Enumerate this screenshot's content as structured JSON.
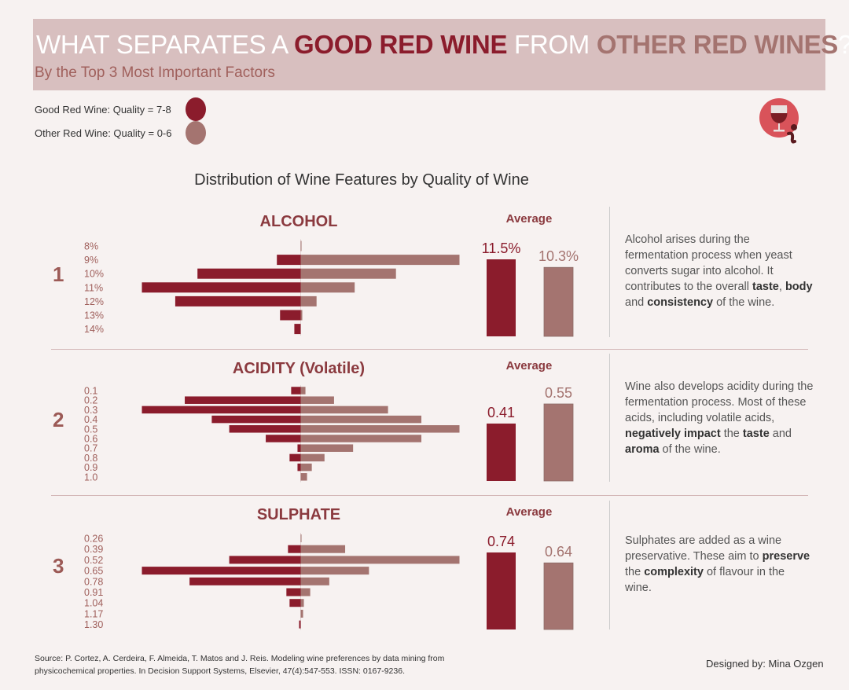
{
  "header": {
    "title_part1": "WHAT SEPARATES A ",
    "title_good": "GOOD RED WINE",
    "title_part2": " FROM ",
    "title_other": "OTHER RED WINES",
    "title_part3": "?",
    "subtitle": "By the Top 3 Most Important Factors"
  },
  "legend": {
    "good_label": "Good Red Wine: Quality = 7-8",
    "other_label": "Other Red Wine: Quality = 0-6"
  },
  "colors": {
    "good": "#8b1c2c",
    "other": "#a47470",
    "banner": "#d8bfbf",
    "background": "#f7f2f1"
  },
  "icon": "wine-glass-info-icon",
  "chart_heading": "Distribution of Wine Features by Quality of Wine",
  "average_label": "Average",
  "chart_data": [
    {
      "type": "bar",
      "orientation": "diverging-horizontal",
      "rank": "1",
      "title": "ALCOHOL",
      "categories": [
        "8%",
        "9%",
        "10%",
        "11%",
        "12%",
        "13%",
        "14%"
      ],
      "series": [
        {
          "name": "Good Red Wine: Quality = 7-8",
          "values": [
            0,
            0.15,
            0.65,
            1.0,
            0.79,
            0.13,
            0.04
          ]
        },
        {
          "name": "Other Red Wine: Quality = 0-6",
          "values": [
            0.005,
            1.0,
            0.6,
            0.34,
            0.1,
            0.01,
            0
          ]
        }
      ],
      "average": {
        "good": 11.5,
        "other": 10.3,
        "good_label": "11.5%",
        "other_label": "10.3%"
      }
    },
    {
      "type": "bar",
      "orientation": "diverging-horizontal",
      "rank": "2",
      "title": "ACIDITY (Volatile)",
      "categories": [
        "0.1",
        "0.2",
        "0.3",
        "0.4",
        "0.5",
        "0.6",
        "0.7",
        "0.8",
        "0.9",
        "1.0"
      ],
      "series": [
        {
          "name": "Good Red Wine: Quality = 7-8",
          "values": [
            0.06,
            0.73,
            1.0,
            0.56,
            0.45,
            0.22,
            0.02,
            0.07,
            0.02,
            0
          ]
        },
        {
          "name": "Other Red Wine: Quality = 0-6",
          "values": [
            0.03,
            0.21,
            0.55,
            0.76,
            1.0,
            0.76,
            0.33,
            0.15,
            0.07,
            0.04
          ]
        }
      ],
      "average": {
        "good": 0.41,
        "other": 0.55,
        "good_label": "0.41",
        "other_label": "0.55"
      }
    },
    {
      "type": "bar",
      "orientation": "diverging-horizontal",
      "rank": "3",
      "title": "SULPHATE",
      "categories": [
        "0.26",
        "0.39",
        "0.52",
        "0.65",
        "0.78",
        "0.91",
        "1.04",
        "1.17",
        "1.30"
      ],
      "series": [
        {
          "name": "Good Red Wine: Quality = 7-8",
          "values": [
            0,
            0.08,
            0.45,
            1.0,
            0.7,
            0.09,
            0.07,
            0,
            0.01
          ]
        },
        {
          "name": "Other Red Wine: Quality = 0-6",
          "values": [
            0.005,
            0.28,
            1.0,
            0.43,
            0.18,
            0.06,
            0.02,
            0.015,
            0
          ]
        }
      ],
      "average": {
        "good": 0.74,
        "other": 0.64,
        "good_label": "0.74",
        "other_label": "0.64"
      }
    }
  ],
  "descriptions": [
    [
      {
        "text": "Alcohol arises during the fermentation process when yeast converts sugar into alcohol. It contributes to the overall ",
        "bold": false
      },
      {
        "text": "taste",
        "bold": true
      },
      {
        "text": ", ",
        "bold": false
      },
      {
        "text": "body",
        "bold": true
      },
      {
        "text": " and ",
        "bold": false
      },
      {
        "text": "consistency",
        "bold": true
      },
      {
        "text": " of the wine.",
        "bold": false
      }
    ],
    [
      {
        "text": "Wine also develops acidity during the fermentation process. Most of these acids, including volatile acids, ",
        "bold": false
      },
      {
        "text": "negatively impact",
        "bold": true
      },
      {
        "text": " the ",
        "bold": false
      },
      {
        "text": "taste",
        "bold": true
      },
      {
        "text": " and ",
        "bold": false
      },
      {
        "text": "aroma",
        "bold": true
      },
      {
        "text": " of the wine.",
        "bold": false
      }
    ],
    [
      {
        "text": "Sulphates are added as a wine preservative. These aim to ",
        "bold": false
      },
      {
        "text": "preserve",
        "bold": true
      },
      {
        "text": " the ",
        "bold": false
      },
      {
        "text": "complexity",
        "bold": true
      },
      {
        "text": " of flavour in the wine.",
        "bold": false
      }
    ]
  ],
  "footer": {
    "source": "Source: P. Cortez, A. Cerdeira, F. Almeida, T. Matos and J. Reis. Modeling wine preferences by data mining from physicochemical properties. In Decision Support Systems, Elsevier, 47(4):547-553. ISSN: 0167-9236.",
    "designer": "Designed by: Mina Ozgen"
  }
}
